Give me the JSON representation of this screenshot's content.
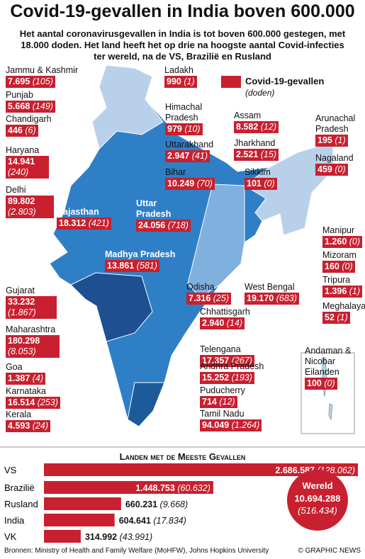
{
  "header": {
    "title": "Covid-19-gevallen in India boven 600.000",
    "subtitle": "Het aantal coronavirusgevallen in India is tot boven 600.000 gestegen, met 18.000 doden. Het land heeft het op drie na hoogste aantal Covid-infecties ter wereld, na de VS, Brazilië en Rusland"
  },
  "legend": {
    "label": "Covid-19-gevallen",
    "sub": "(doden)"
  },
  "states": [
    {
      "name": "Jammu & Kashmir",
      "cases": "7.695",
      "deaths": "(105)"
    },
    {
      "name": "Punjab",
      "cases": "5.668",
      "deaths": "(149)"
    },
    {
      "name": "Chandigarh",
      "cases": "446",
      "deaths": "(6)"
    },
    {
      "name": "Haryana",
      "cases": "14.941",
      "deaths": "(240)"
    },
    {
      "name": "Delhi",
      "cases": "89.802",
      "deaths": "(2.803)"
    },
    {
      "name": "Rajasthan",
      "cases": "18.312",
      "deaths": "(421)"
    },
    {
      "name": "Uttar Pradesh",
      "cases": "24.056",
      "deaths": "(718)"
    },
    {
      "name": "Madhya Pradesh",
      "cases": "13.861",
      "deaths": "(581)"
    },
    {
      "name": "Gujarat",
      "cases": "33.232",
      "deaths": "(1.867)"
    },
    {
      "name": "Maharashtra",
      "cases": "180.298",
      "deaths": "(8.053)"
    },
    {
      "name": "Goa",
      "cases": "1.387",
      "deaths": "(4)"
    },
    {
      "name": "Karnataka",
      "cases": "16.514",
      "deaths": "(253)"
    },
    {
      "name": "Kerala",
      "cases": "4.593",
      "deaths": "(24)"
    },
    {
      "name": "Ladakh",
      "cases": "990",
      "deaths": "(1)"
    },
    {
      "name": "Himachal Pradesh",
      "cases": "979",
      "deaths": "(10)"
    },
    {
      "name": "Uttarakhand",
      "cases": "2.947",
      "deaths": "(41)"
    },
    {
      "name": "Bihar",
      "cases": "10.249",
      "deaths": "(70)"
    },
    {
      "name": "Sikkim",
      "cases": "101",
      "deaths": "(0)"
    },
    {
      "name": "Assam",
      "cases": "8.582",
      "deaths": "(12)"
    },
    {
      "name": "Jharkhand",
      "cases": "2.521",
      "deaths": "(15)"
    },
    {
      "name": "West Bengal",
      "cases": "19.170",
      "deaths": "(683)"
    },
    {
      "name": "Odisha",
      "cases": "7.316",
      "deaths": "(25)"
    },
    {
      "name": "Chhattisgarh",
      "cases": "2.940",
      "deaths": "(14)"
    },
    {
      "name": "Telengana",
      "cases": "17.357",
      "deaths": "(267)"
    },
    {
      "name": "Andhra Pradesh",
      "cases": "15.252",
      "deaths": "(193)"
    },
    {
      "name": "Puducherry",
      "cases": "714",
      "deaths": "(12)"
    },
    {
      "name": "Tamil Nadu",
      "cases": "94.049",
      "deaths": "(1.264)"
    },
    {
      "name": "Arunachal Pradesh",
      "cases": "195",
      "deaths": "(1)"
    },
    {
      "name": "Nagaland",
      "cases": "459",
      "deaths": "(0)"
    },
    {
      "name": "Manipur",
      "cases": "1.260",
      "deaths": "(0)"
    },
    {
      "name": "Mizoram",
      "cases": "160",
      "deaths": "(0)"
    },
    {
      "name": "Tripura",
      "cases": "1.396",
      "deaths": "(1)"
    },
    {
      "name": "Meghalaya",
      "cases": "52",
      "deaths": "(1)"
    },
    {
      "name": "Andaman & Nicobar Eilanden",
      "cases": "100",
      "deaths": "(0)"
    }
  ],
  "chart_data": {
    "type": "bar",
    "title": "Landen met de Meeste Gevallen",
    "categories": [
      "VS",
      "Brazilië",
      "Rusland",
      "India",
      "VK"
    ],
    "values": [
      2686587,
      1448753,
      660231,
      604641,
      314992
    ],
    "value_labels": [
      "2.686.587",
      "1.448.753",
      "660.231",
      "604.641",
      "314.992"
    ],
    "death_labels": [
      "(128.062)",
      "(60.632)",
      "(9.668)",
      "(17.834)",
      "(43.991)"
    ],
    "color": "#c8202f"
  },
  "world": {
    "label": "Wereld",
    "cases": "10.694.288",
    "deaths": "(516.434)"
  },
  "footer": {
    "sources": "Bronnen: Ministry of Health and Family Welfare (MoHFW), Johns Hopkins University",
    "credit": "© GRAPHIC NEWS"
  }
}
